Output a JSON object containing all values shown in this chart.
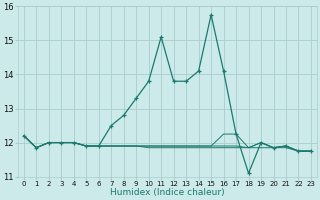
{
  "xlabel": "Humidex (Indice chaleur)",
  "xlim": [
    -0.5,
    23.5
  ],
  "ylim": [
    11,
    16
  ],
  "yticks": [
    11,
    12,
    13,
    14,
    15,
    16
  ],
  "xticks": [
    0,
    1,
    2,
    3,
    4,
    5,
    6,
    7,
    8,
    9,
    10,
    11,
    12,
    13,
    14,
    15,
    16,
    17,
    18,
    19,
    20,
    21,
    22,
    23
  ],
  "bg_color": "#cceaea",
  "grid_color": "#aacccc",
  "line_color": "#1a7a6e",
  "series_flat": [
    [
      12.2,
      11.85,
      12.0,
      12.0,
      12.0,
      11.9,
      11.9,
      11.9,
      11.9,
      11.9,
      11.85,
      11.85,
      11.85,
      11.85,
      11.85,
      11.85,
      11.85,
      11.85,
      11.85,
      11.85,
      11.85,
      11.85,
      11.75,
      11.75
    ],
    [
      12.2,
      11.85,
      12.0,
      12.0,
      12.0,
      11.9,
      11.9,
      11.9,
      11.9,
      11.9,
      11.9,
      11.9,
      11.9,
      11.9,
      11.9,
      11.9,
      11.9,
      11.9,
      11.85,
      12.0,
      11.85,
      11.9,
      11.75,
      11.75
    ],
    [
      12.2,
      11.85,
      12.0,
      12.0,
      12.0,
      11.9,
      11.9,
      11.9,
      11.9,
      11.9,
      11.9,
      11.9,
      11.9,
      11.9,
      11.9,
      11.9,
      12.25,
      12.25,
      11.85,
      12.0,
      11.85,
      11.9,
      11.75,
      11.75
    ]
  ],
  "series_main": [
    12.2,
    11.85,
    12.0,
    12.0,
    12.0,
    11.9,
    11.9,
    12.5,
    12.8,
    13.3,
    13.8,
    15.1,
    13.8,
    13.8,
    14.1,
    15.75,
    14.1,
    12.25,
    11.1,
    12.0,
    11.85,
    11.9,
    11.75,
    11.75
  ]
}
